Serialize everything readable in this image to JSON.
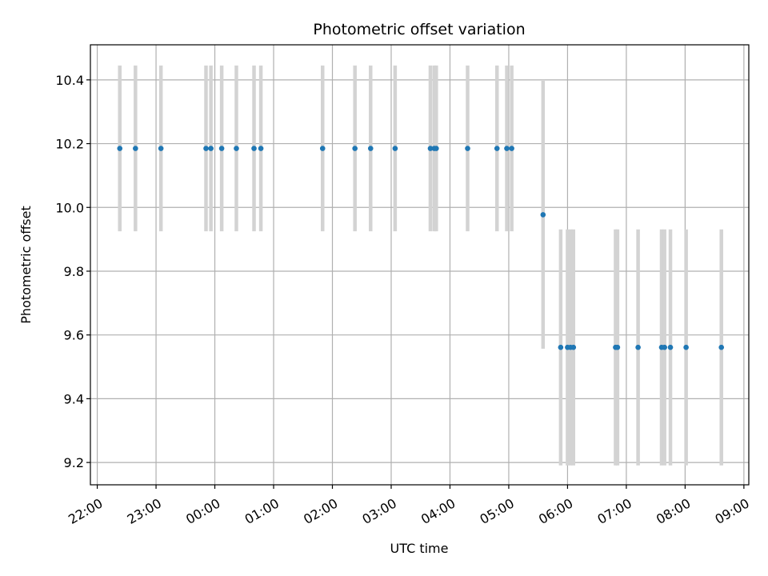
{
  "chart_data": {
    "type": "scatter",
    "title": "Photometric offset variation",
    "xlabel": "UTC time",
    "ylabel": "Photometric offset",
    "grid": true,
    "x_is_time": true,
    "xlim": [
      "21:53",
      "09:05"
    ],
    "ylim": [
      9.13,
      10.51
    ],
    "x_ticks": [
      "22:00",
      "23:00",
      "00:00",
      "01:00",
      "02:00",
      "03:00",
      "04:00",
      "05:00",
      "06:00",
      "07:00",
      "08:00",
      "09:00"
    ],
    "y_ticks": [
      "9.2",
      "9.4",
      "9.6",
      "9.8",
      "10.0",
      "10.2",
      "10.4"
    ],
    "colors": {
      "points": "#1f77b4",
      "error_bars": "#d3d3d3",
      "grid": "#b0b0b0"
    },
    "series": [
      {
        "x": [
          "22:23",
          "22:39",
          "23:05",
          "23:51",
          "23:56",
          "00:07",
          "00:22",
          "00:40",
          "00:47",
          "01:50",
          "02:23",
          "02:39",
          "03:04",
          "03:40",
          "03:44",
          "03:46",
          "04:18",
          "04:48",
          "04:58",
          "05:03",
          "05:35",
          "05:53",
          "06:00",
          "06:03",
          "06:06",
          "06:49",
          "06:51",
          "07:12",
          "07:36",
          "07:39",
          "07:45",
          "08:01",
          "08:37"
        ],
        "y": [
          10.185,
          10.185,
          10.185,
          10.185,
          10.185,
          10.185,
          10.185,
          10.185,
          10.185,
          10.185,
          10.185,
          10.185,
          10.185,
          10.185,
          10.185,
          10.185,
          10.185,
          10.185,
          10.185,
          10.185,
          9.977,
          9.561,
          9.561,
          9.561,
          9.561,
          9.561,
          9.561,
          9.561,
          9.561,
          9.561,
          9.561,
          9.561,
          9.561
        ],
        "yerr": [
          0.26,
          0.26,
          0.26,
          0.26,
          0.26,
          0.26,
          0.26,
          0.26,
          0.26,
          0.26,
          0.26,
          0.26,
          0.26,
          0.26,
          0.26,
          0.26,
          0.26,
          0.26,
          0.26,
          0.26,
          0.42,
          0.37,
          0.37,
          0.37,
          0.37,
          0.37,
          0.37,
          0.37,
          0.37,
          0.37,
          0.37,
          0.37,
          0.37
        ]
      }
    ]
  }
}
